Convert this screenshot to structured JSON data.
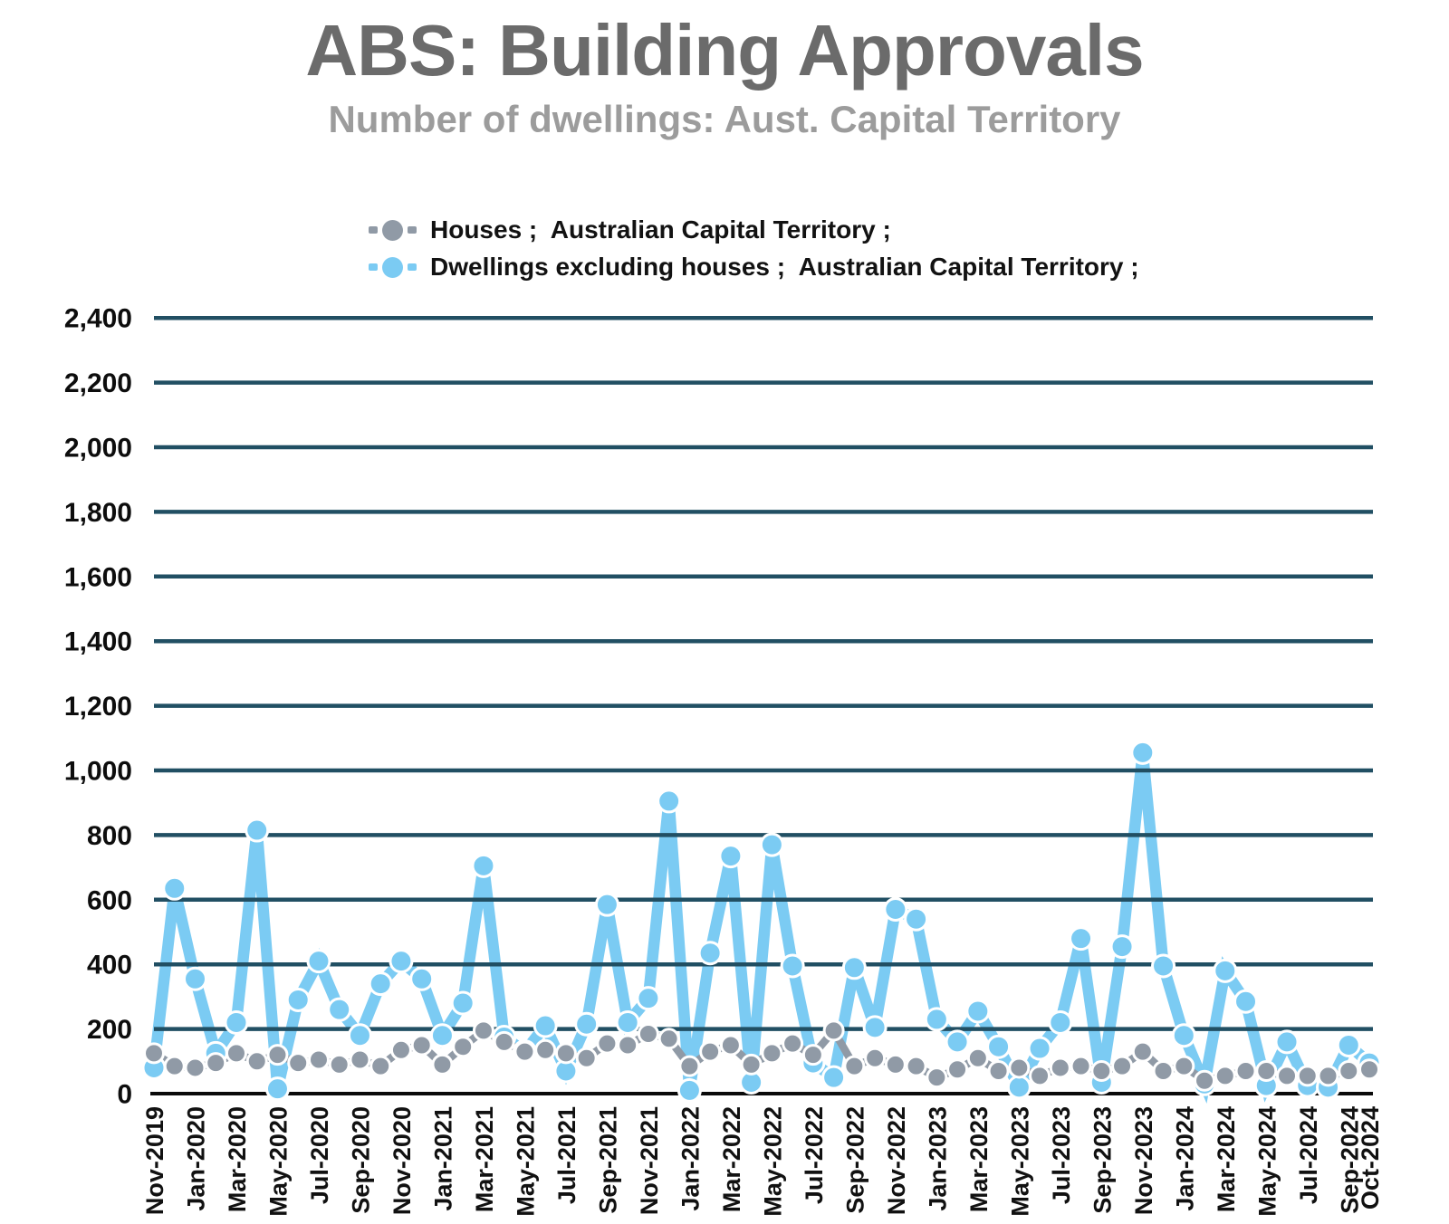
{
  "header": {
    "title": "ABS: Building Approvals",
    "subtitle": "Number of dwellings: Aust. Capital Territory"
  },
  "legend": [
    {
      "label": "Houses ;  Australian Capital Territory ;",
      "color": "#909AA6"
    },
    {
      "label": "Dwellings excluding houses ;  Australian Capital Territory ;",
      "color": "#7BCBF3"
    }
  ],
  "chart_data": {
    "type": "line",
    "title": "ABS: Building Approvals",
    "subtitle": "Number of dwellings: Aust. Capital Territory",
    "ylim": [
      0,
      2400
    ],
    "ytick_step": 200,
    "y_tick_labels": [
      "0",
      "200",
      "400",
      "600",
      "800",
      "1,000",
      "1,200",
      "1,400",
      "1,600",
      "1,800",
      "2,000",
      "2,200",
      "2,400"
    ],
    "grid": "horizontal",
    "gridline_color": "#214F63",
    "axis_color": "#0a0a0a",
    "legend_position": "top",
    "categories": [
      "Nov-2019",
      "Dec-2019",
      "Jan-2020",
      "Feb-2020",
      "Mar-2020",
      "Apr-2020",
      "May-2020",
      "Jun-2020",
      "Jul-2020",
      "Aug-2020",
      "Sep-2020",
      "Oct-2020",
      "Nov-2020",
      "Dec-2020",
      "Jan-2021",
      "Feb-2021",
      "Mar-2021",
      "Apr-2021",
      "May-2021",
      "Jun-2021",
      "Jul-2021",
      "Aug-2021",
      "Sep-2021",
      "Oct-2021",
      "Nov-2021",
      "Dec-2021",
      "Jan-2022",
      "Feb-2022",
      "Mar-2022",
      "Apr-2022",
      "May-2022",
      "Jun-2022",
      "Jul-2022",
      "Aug-2022",
      "Sep-2022",
      "Oct-2022",
      "Nov-2022",
      "Dec-2022",
      "Jan-2023",
      "Feb-2023",
      "Mar-2023",
      "Apr-2023",
      "May-2023",
      "Jun-2023",
      "Jul-2023",
      "Aug-2023",
      "Sep-2023",
      "Oct-2023",
      "Nov-2023",
      "Dec-2023",
      "Jan-2024",
      "Feb-2024",
      "Mar-2024",
      "Apr-2024",
      "May-2024",
      "Jun-2024",
      "Jul-2024",
      "Aug-2024",
      "Sep-2024",
      "Oct-2024"
    ],
    "x_tick_labels": [
      "Nov-2019",
      "Jan-2020",
      "Mar-2020",
      "May-2020",
      "Jul-2020",
      "Sep-2020",
      "Nov-2020",
      "Jan-2021",
      "Mar-2021",
      "May-2021",
      "Jul-2021",
      "Sep-2021",
      "Nov-2021",
      "Jan-2022",
      "Mar-2022",
      "May-2022",
      "Jul-2022",
      "Sep-2022",
      "Nov-2022",
      "Jan-2023",
      "Mar-2023",
      "May-2023",
      "Jul-2023",
      "Sep-2023",
      "Nov-2023",
      "Jan-2024",
      "Mar-2024",
      "May-2024",
      "Jul-2024",
      "Sep-2024",
      "Oct-2024"
    ],
    "series": [
      {
        "name": "Houses ;  Australian Capital Territory ;",
        "color": "#909AA6",
        "values": [
          125,
          85,
          80,
          95,
          125,
          100,
          120,
          95,
          105,
          90,
          105,
          85,
          135,
          150,
          90,
          145,
          195,
          160,
          130,
          135,
          125,
          110,
          155,
          150,
          185,
          170,
          85,
          130,
          150,
          90,
          125,
          155,
          120,
          195,
          85,
          110,
          90,
          85,
          50,
          75,
          110,
          70,
          80,
          55,
          80,
          85,
          70,
          85,
          130,
          70,
          85,
          40,
          55,
          70,
          70,
          55,
          55,
          55,
          70,
          75
        ]
      },
      {
        "name": "Dwellings excluding houses ;  Australian Capital Territory ;",
        "color": "#7BCBF3",
        "values": [
          80,
          635,
          355,
          125,
          220,
          815,
          15,
          290,
          410,
          260,
          180,
          340,
          410,
          355,
          180,
          280,
          705,
          175,
          130,
          210,
          70,
          215,
          585,
          220,
          295,
          905,
          10,
          435,
          735,
          35,
          770,
          395,
          95,
          50,
          390,
          205,
          570,
          540,
          230,
          160,
          255,
          145,
          20,
          140,
          220,
          480,
          35,
          455,
          1055,
          395,
          180,
          30,
          380,
          285,
          25,
          160,
          25,
          20,
          150,
          95
        ]
      }
    ]
  }
}
